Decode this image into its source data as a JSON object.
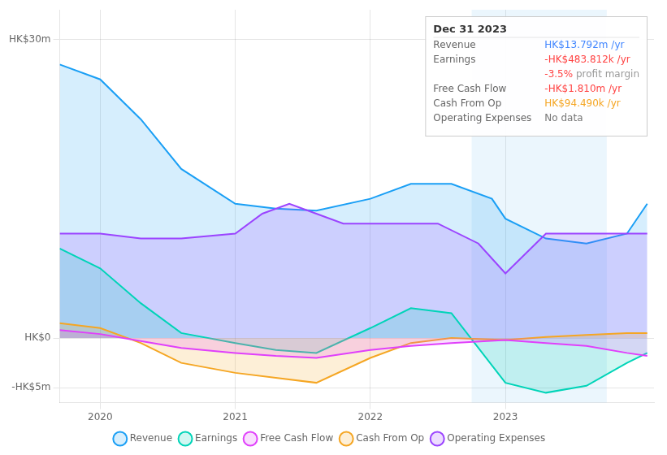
{
  "chart_data": {
    "type": "area",
    "xlim": [
      2019.7,
      2024.1
    ],
    "xticks": [
      2020,
      2021,
      2022,
      2023
    ],
    "ylim": [
      -6.5,
      33
    ],
    "yticks": [
      {
        "value": -5,
        "label": "-HK$5m"
      },
      {
        "value": 0,
        "label": "HK$0"
      },
      {
        "value": 30,
        "label": "HK$30m"
      }
    ],
    "grid": true,
    "legend": "bottom",
    "legend_order": [
      "Revenue",
      "Earnings",
      "Free Cash Flow",
      "Cash From Op",
      "Operating Expenses"
    ],
    "highlight": [
      2022.75,
      2023.75
    ],
    "series": [
      {
        "name": "Revenue",
        "color": "#1a9ff5",
        "x": [
          2019.7,
          2020.0,
          2020.3,
          2020.6,
          2021.0,
          2021.3,
          2021.6,
          2022.0,
          2022.3,
          2022.6,
          2022.9,
          2023.0,
          2023.3,
          2023.6,
          2023.9,
          2024.05
        ],
        "values": [
          27.5,
          26.0,
          22.0,
          17.0,
          13.5,
          13.0,
          12.8,
          14.0,
          15.5,
          15.5,
          14.0,
          12.0,
          10.0,
          9.5,
          10.5,
          13.5
        ]
      },
      {
        "name": "Operating Expenses",
        "color": "#9b44ff",
        "x": [
          2019.7,
          2020.0,
          2020.3,
          2020.6,
          2021.0,
          2021.2,
          2021.4,
          2021.6,
          2021.8,
          2022.0,
          2022.2,
          2022.5,
          2022.8,
          2023.0,
          2023.3,
          2023.6,
          2023.9,
          2024.05
        ],
        "values": [
          10.5,
          10.5,
          10.0,
          10.0,
          10.5,
          12.5,
          13.5,
          12.5,
          11.5,
          11.5,
          11.5,
          11.5,
          9.5,
          6.5,
          10.5,
          10.5,
          10.5,
          10.5
        ]
      },
      {
        "name": "Earnings",
        "color": "#00d4b8",
        "x": [
          2019.7,
          2020.0,
          2020.3,
          2020.6,
          2021.0,
          2021.3,
          2021.6,
          2022.0,
          2022.3,
          2022.6,
          2023.0,
          2023.3,
          2023.6,
          2023.9,
          2024.05
        ],
        "values": [
          9.0,
          7.0,
          3.5,
          0.5,
          -0.5,
          -1.2,
          -1.5,
          1.0,
          3.0,
          2.5,
          -4.5,
          -5.5,
          -4.8,
          -2.5,
          -1.5
        ]
      },
      {
        "name": "Cash From Op",
        "color": "#f5a623",
        "x": [
          2019.7,
          2020.0,
          2020.3,
          2020.6,
          2021.0,
          2021.3,
          2021.6,
          2022.0,
          2022.3,
          2022.6,
          2023.0,
          2023.3,
          2023.6,
          2023.9,
          2024.05
        ],
        "values": [
          1.5,
          1.0,
          -0.5,
          -2.5,
          -3.5,
          -4.0,
          -4.5,
          -2.0,
          -0.5,
          0.0,
          -0.2,
          0.1,
          0.3,
          0.5,
          0.5
        ]
      },
      {
        "name": "Free Cash Flow",
        "color": "#e040fb",
        "x": [
          2019.7,
          2020.0,
          2020.3,
          2020.6,
          2021.0,
          2021.3,
          2021.6,
          2022.0,
          2022.3,
          2022.6,
          2023.0,
          2023.3,
          2023.6,
          2023.9,
          2024.05
        ],
        "values": [
          0.8,
          0.4,
          -0.3,
          -1.0,
          -1.5,
          -1.8,
          -2.0,
          -1.2,
          -0.8,
          -0.5,
          -0.2,
          -0.5,
          -0.8,
          -1.5,
          -1.8
        ]
      }
    ],
    "annotations": [
      {
        "title": "Dec 31 2023",
        "rows": [
          {
            "label": "Revenue",
            "value": "HK$13.792m /yr",
            "color": "#4488ff"
          },
          {
            "label": "Earnings",
            "value": "-HK$483.812k /yr",
            "color": "#ff4444"
          },
          {
            "parts": [
              {
                "text": "-3.5%",
                "color": "#ff4444"
              },
              {
                "text": " profit margin",
                "color": "#999999"
              }
            ]
          },
          {
            "label": "Free Cash Flow",
            "value": "-HK$1.810m /yr",
            "color": "#ff4444"
          },
          {
            "label": "Cash From Op",
            "value": "HK$94.490k /yr",
            "color": "#f5a623"
          },
          {
            "label": "Operating Expenses",
            "value": "No data",
            "color": "#777777"
          }
        ]
      }
    ]
  }
}
